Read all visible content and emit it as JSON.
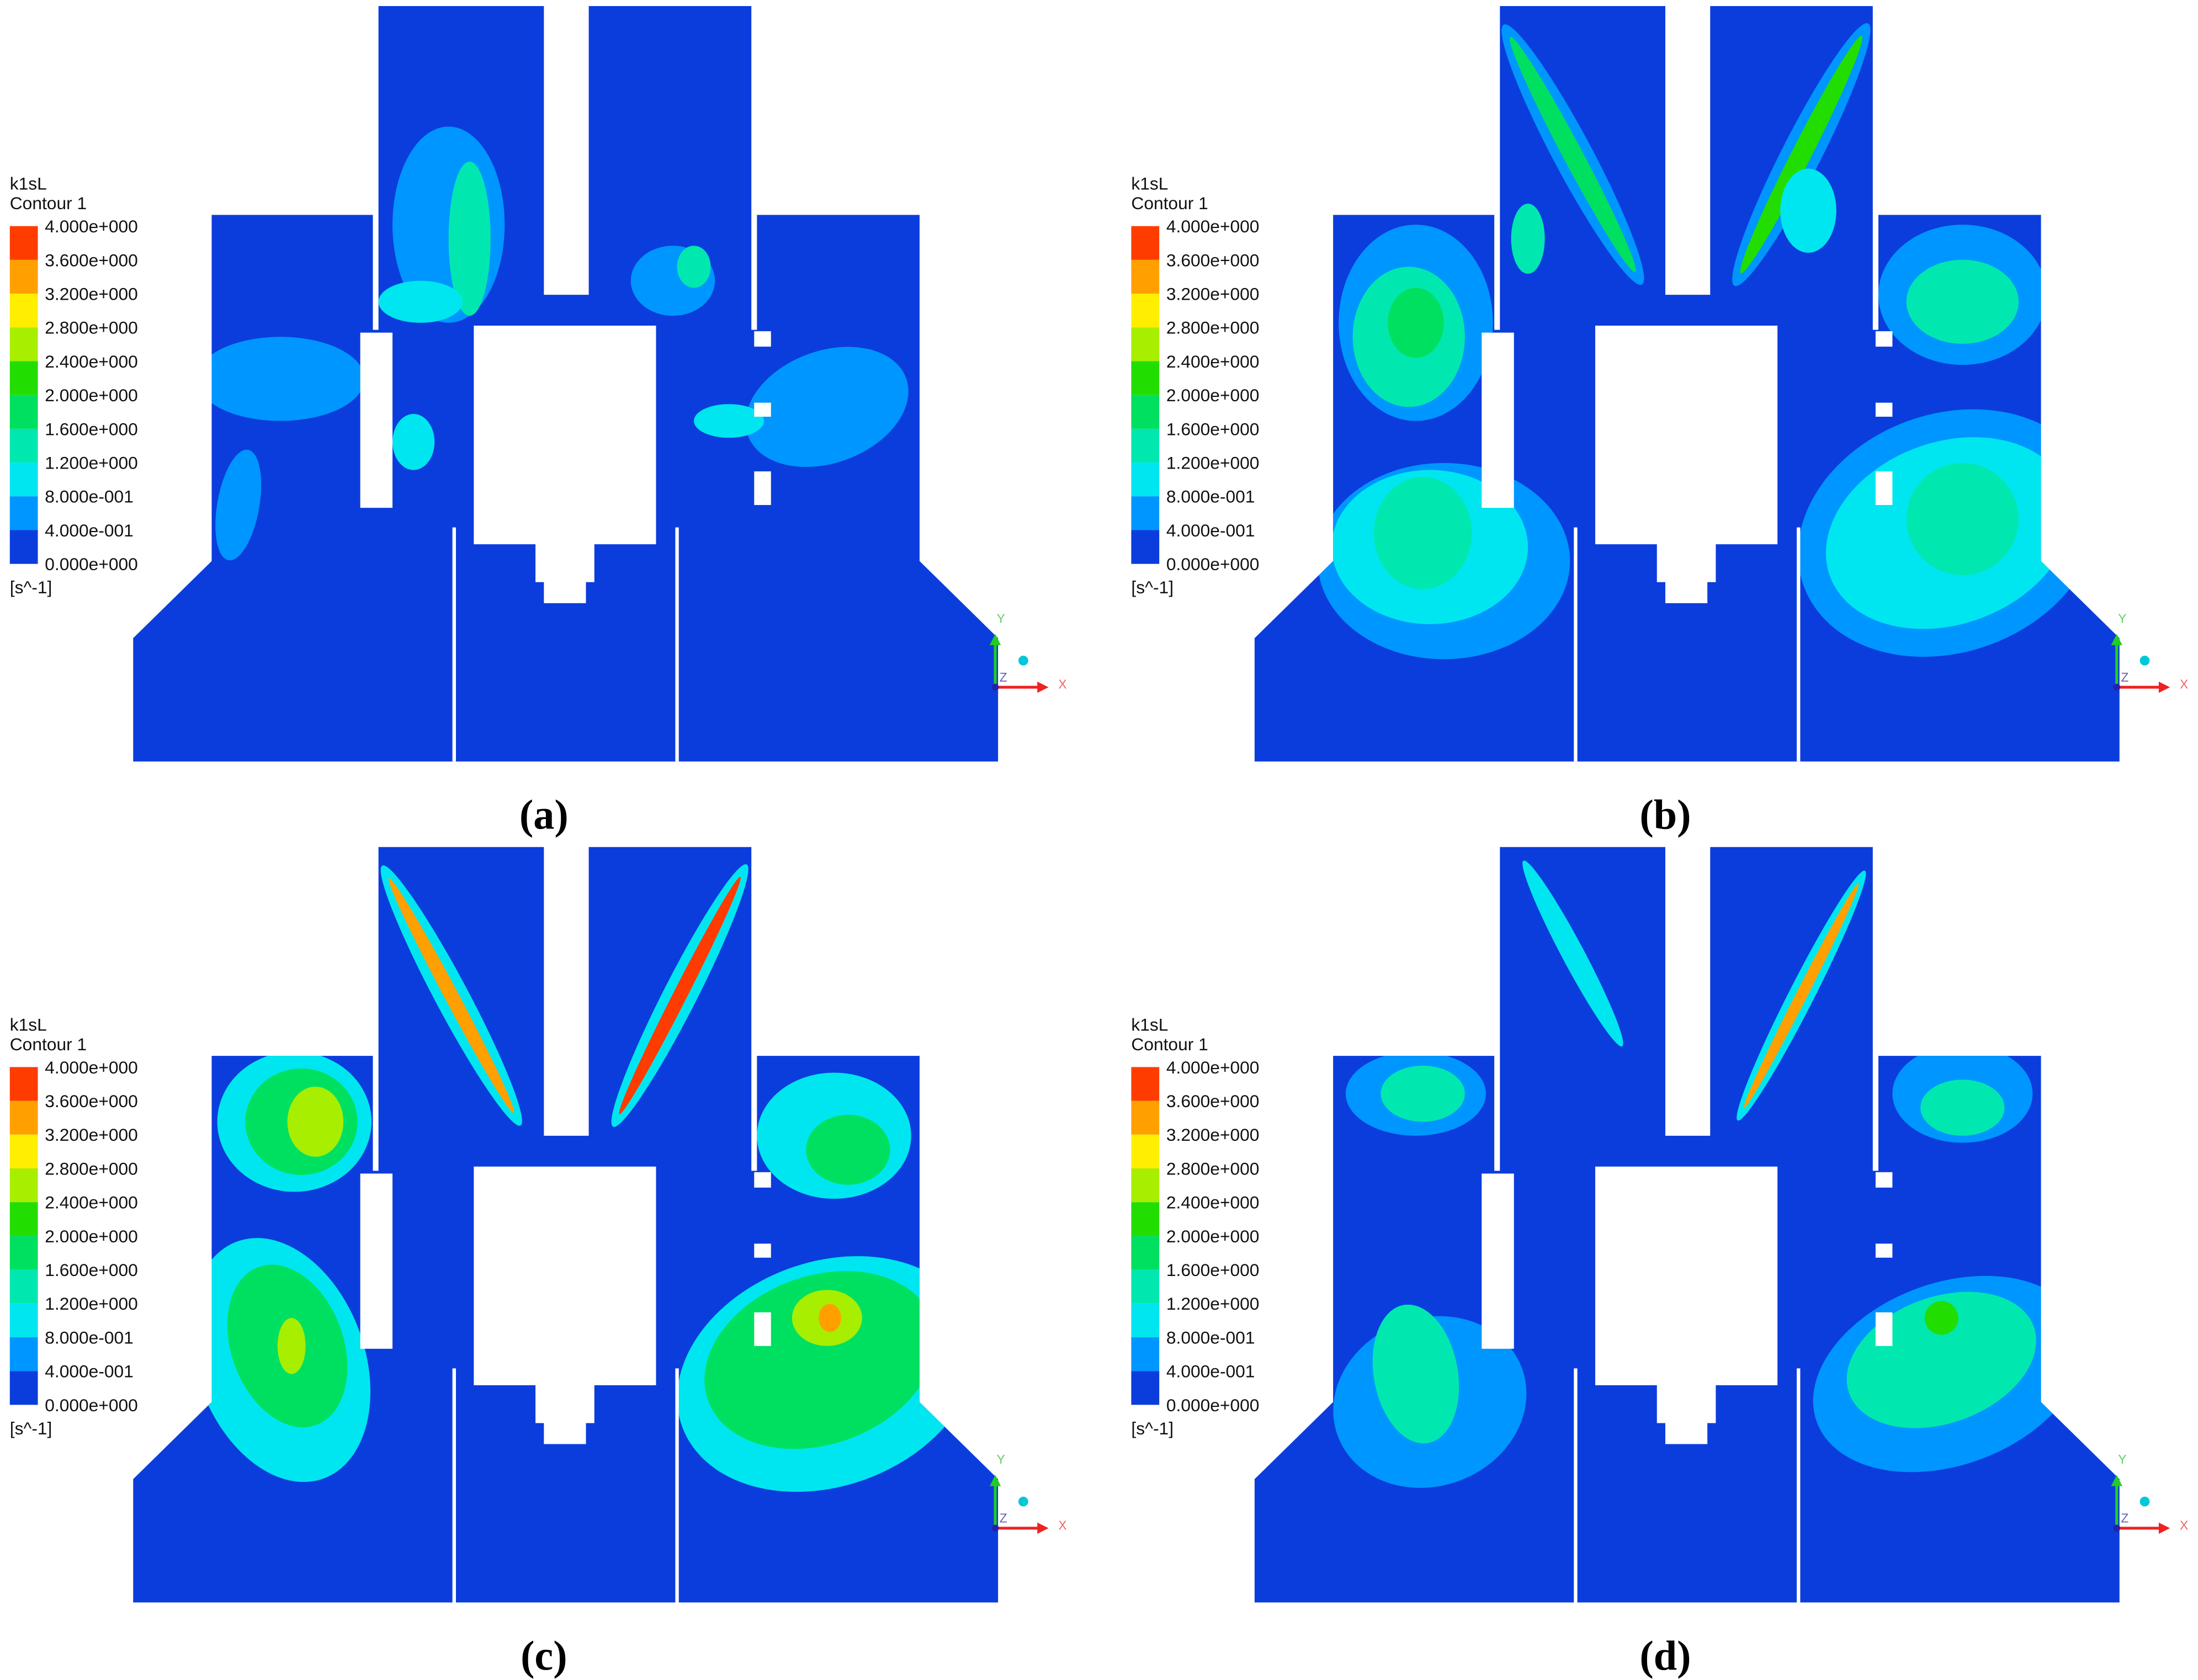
{
  "panels": [
    {
      "legend": {
        "title": "k1sL",
        "subtitle": "Contour 1",
        "levels": [
          "4.000e+000",
          "3.600e+000",
          "3.200e+000",
          "2.800e+000",
          "2.400e+000",
          "2.000e+000",
          "1.600e+000",
          "1.200e+000",
          "8.000e-001",
          "4.000e-001",
          "0.000e+000"
        ],
        "unit": "[s^-1]"
      },
      "axes": {
        "y": "Y",
        "x": "X",
        "z": "Z"
      },
      "caption": "(a)"
    },
    {
      "legend": {
        "title": "k1sL",
        "subtitle": "Contour 1",
        "levels": [
          "4.000e+000",
          "3.600e+000",
          "3.200e+000",
          "2.800e+000",
          "2.400e+000",
          "2.000e+000",
          "1.600e+000",
          "1.200e+000",
          "8.000e-001",
          "4.000e-001",
          "0.000e+000"
        ],
        "unit": "[s^-1]"
      },
      "axes": {
        "y": "Y",
        "x": "X",
        "z": "Z"
      },
      "caption": "(b)"
    },
    {
      "legend": {
        "title": "k1sL",
        "subtitle": "Contour 1",
        "levels": [
          "4.000e+000",
          "3.600e+000",
          "3.200e+000",
          "2.800e+000",
          "2.400e+000",
          "2.000e+000",
          "1.600e+000",
          "1.200e+000",
          "8.000e-001",
          "4.000e-001",
          "0.000e+000"
        ],
        "unit": "[s^-1]"
      },
      "axes": {
        "y": "Y",
        "x": "X",
        "z": "Z"
      },
      "caption": "(c)"
    },
    {
      "legend": {
        "title": "k1sL",
        "subtitle": "Contour 1",
        "levels": [
          "4.000e+000",
          "3.600e+000",
          "3.200e+000",
          "2.800e+000",
          "2.400e+000",
          "2.000e+000",
          "1.600e+000",
          "1.200e+000",
          "8.000e-001",
          "4.000e-001",
          "0.000e+000"
        ],
        "unit": "[s^-1]"
      },
      "axes": {
        "y": "Y",
        "x": "X",
        "z": "Z"
      },
      "caption": "(d)"
    }
  ],
  "legend_colors": [
    "#ff3c00",
    "#ffa000",
    "#ffee00",
    "#a8ee00",
    "#22dd00",
    "#00e060",
    "#00e8b0",
    "#00e6f0",
    "#0096ff",
    "#0b3ddd"
  ]
}
